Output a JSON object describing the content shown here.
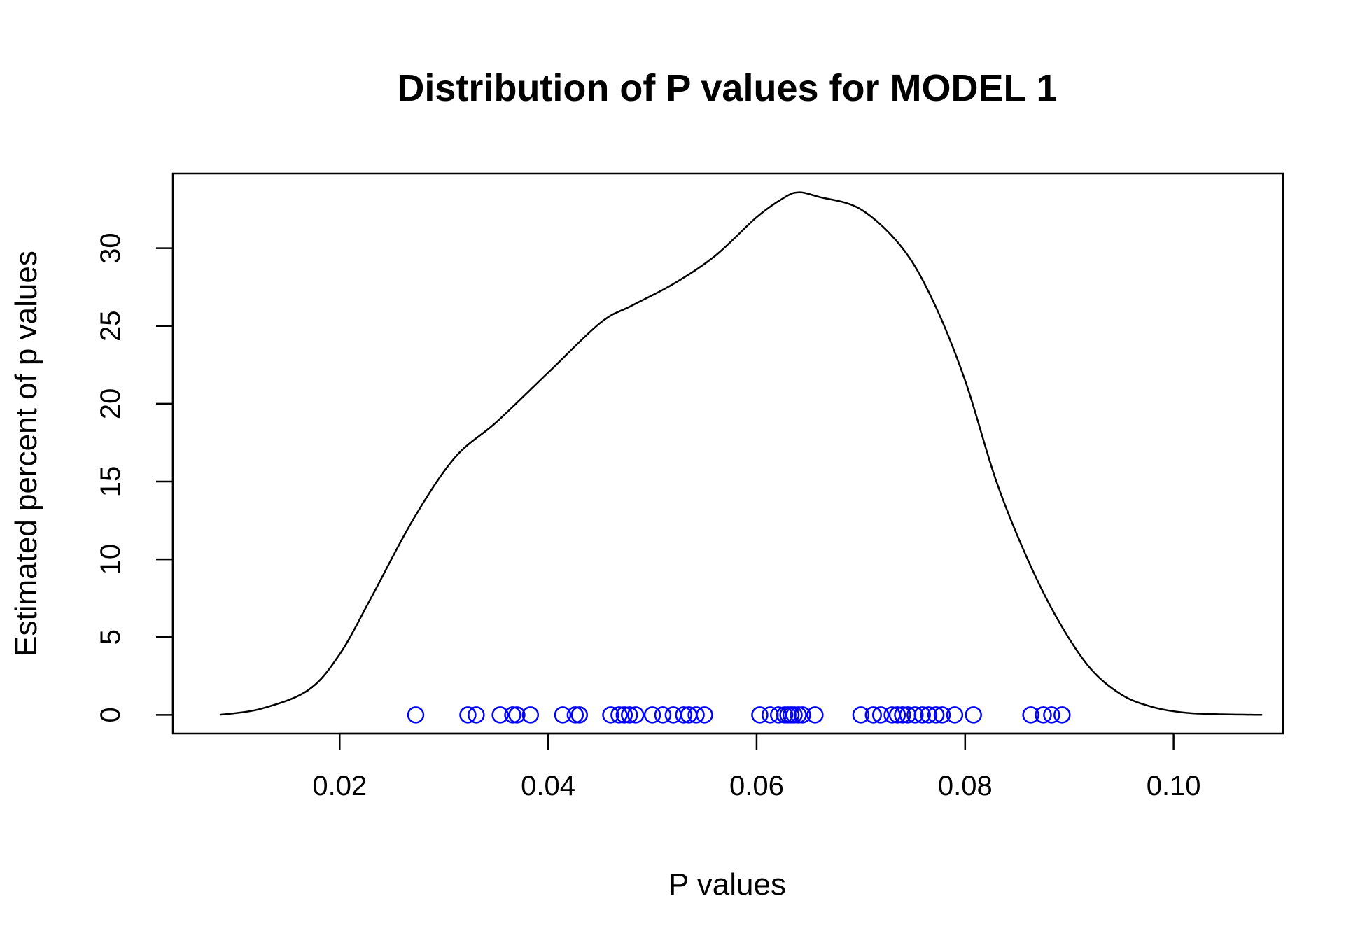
{
  "chart_data": {
    "type": "line",
    "title": "Distribution of P values for MODEL 1",
    "xlabel": "P values",
    "ylabel": "Estimated percent of p values",
    "xlim": [
      0.004,
      0.1105
    ],
    "ylim": [
      -1.2,
      34.8
    ],
    "x_ticks": [
      "0.02",
      "0.04",
      "0.06",
      "0.08",
      "0.10"
    ],
    "y_ticks": [
      "0",
      "5",
      "10",
      "15",
      "20",
      "25",
      "30"
    ],
    "grid": false,
    "colors": {
      "density_line": "#000000",
      "rug_points": "#0000ff",
      "frame": "#000000"
    },
    "series": [
      {
        "kind": "density-line",
        "x": [
          0.0085,
          0.0125,
          0.017,
          0.02,
          0.023,
          0.027,
          0.031,
          0.035,
          0.04,
          0.045,
          0.048,
          0.052,
          0.056,
          0.06,
          0.0625,
          0.064,
          0.066,
          0.07,
          0.074,
          0.077,
          0.08,
          0.083,
          0.086,
          0.089,
          0.092,
          0.095,
          0.098,
          0.101,
          0.104,
          0.1085
        ],
        "y": [
          0.0,
          0.4,
          1.6,
          3.9,
          7.5,
          12.5,
          16.5,
          18.8,
          22.0,
          25.2,
          26.3,
          27.7,
          29.5,
          32.0,
          33.2,
          33.6,
          33.3,
          32.5,
          30.0,
          26.5,
          21.5,
          15.0,
          10.0,
          6.0,
          3.0,
          1.3,
          0.5,
          0.15,
          0.05,
          0.0
        ]
      },
      {
        "kind": "rug-points",
        "x": [
          0.0273,
          0.0323,
          0.0331,
          0.0354,
          0.0366,
          0.037,
          0.0383,
          0.0414,
          0.0426,
          0.043,
          0.046,
          0.0468,
          0.0473,
          0.0478,
          0.0484,
          0.05,
          0.051,
          0.052,
          0.053,
          0.0535,
          0.0542,
          0.055,
          0.0603,
          0.0613,
          0.0621,
          0.0627,
          0.063,
          0.0633,
          0.0636,
          0.064,
          0.0644,
          0.0656,
          0.07,
          0.0712,
          0.0719,
          0.073,
          0.0735,
          0.074,
          0.0745,
          0.0752,
          0.0759,
          0.0765,
          0.0772,
          0.0778,
          0.079,
          0.0808,
          0.0863,
          0.0875,
          0.0883,
          0.0893
        ],
        "y": [
          0,
          0,
          0,
          0,
          0,
          0,
          0,
          0,
          0,
          0,
          0,
          0,
          0,
          0,
          0,
          0,
          0,
          0,
          0,
          0,
          0,
          0,
          0,
          0,
          0,
          0,
          0,
          0,
          0,
          0,
          0,
          0,
          0,
          0,
          0,
          0,
          0,
          0,
          0,
          0,
          0,
          0,
          0,
          0,
          0,
          0,
          0,
          0,
          0,
          0
        ]
      }
    ]
  }
}
